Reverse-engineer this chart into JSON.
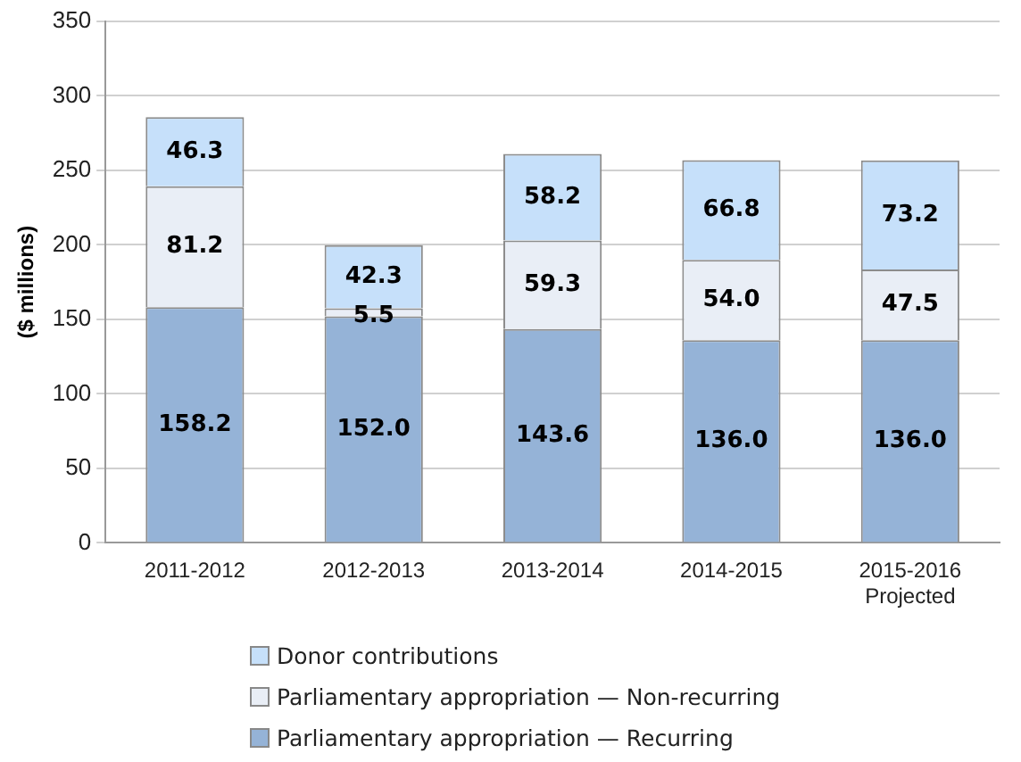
{
  "chart_data": {
    "type": "bar",
    "stacked": true,
    "ylabel": "($ millions)",
    "categories": [
      "2011-2012",
      "2012-2013",
      "2013-2014",
      "2014-2015",
      "2015-2016\nProjected"
    ],
    "series": [
      {
        "name": "Parliamentary appropriation — Recurring",
        "color": "#95b3d7",
        "values": [
          158.2,
          152.0,
          143.6,
          136.0,
          136.0
        ],
        "value_labels": [
          "158.2",
          "152.0",
          "143.6",
          "136.0",
          "136.0"
        ]
      },
      {
        "name": "Parliamentary appropriation — Non-recurring",
        "color": "#e9eef6",
        "values": [
          81.2,
          5.5,
          59.3,
          54.0,
          47.5
        ],
        "value_labels": [
          "81.2",
          "5.5",
          "59.3",
          "54.0",
          "47.5"
        ]
      },
      {
        "name": "Donor contributions",
        "color": "#c6e0fa",
        "values": [
          46.3,
          42.3,
          58.2,
          66.8,
          73.2
        ],
        "value_labels": [
          "46.3",
          "42.3",
          "58.2",
          "66.8",
          "73.2"
        ]
      }
    ],
    "ylim": [
      0,
      350
    ],
    "yticks": [
      0,
      50,
      100,
      150,
      200,
      250,
      300,
      350
    ],
    "grid": "y",
    "legend": "bottom"
  }
}
